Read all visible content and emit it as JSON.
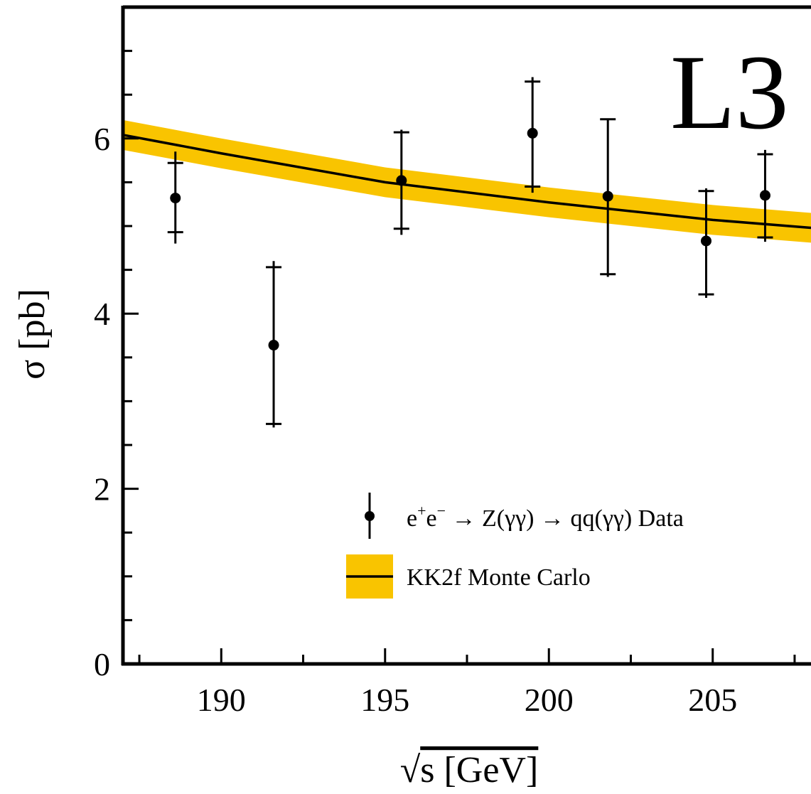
{
  "chart_data": {
    "type": "scatter",
    "tag": "L3",
    "xlabel_sqrt": "√",
    "xlabel_rest": "s [GeV]",
    "ylabel": "σ [pb]",
    "xlim": [
      187,
      208
    ],
    "ylim": [
      0,
      7.5
    ],
    "x_ticks": [
      190,
      195,
      200,
      205
    ],
    "y_ticks": [
      0,
      2,
      4,
      6
    ],
    "x_minor_step": 2.5,
    "y_minor_step": 0.5,
    "series": [
      {
        "name": "e⁺e⁻ → Z(γγ) → qq(γγ) Data",
        "legend_parts": {
          "e1": "e",
          "sup1": "+",
          "e2": "e",
          "sup2": "−",
          "rest": " → Z(γγ) → qq(γγ) Data"
        },
        "points": [
          {
            "x": 188.6,
            "y": 5.32,
            "err_lo": 4.8,
            "err_hi": 5.85,
            "cap_lo": 4.93,
            "cap_hi": 5.72
          },
          {
            "x": 191.6,
            "y": 3.64,
            "err_lo": 2.7,
            "err_hi": 4.6,
            "cap_lo": 2.74,
            "cap_hi": 4.53
          },
          {
            "x": 195.5,
            "y": 5.52,
            "err_lo": 4.9,
            "err_hi": 6.1,
            "cap_lo": 4.97,
            "cap_hi": 6.07
          },
          {
            "x": 199.5,
            "y": 6.06,
            "err_lo": 5.38,
            "err_hi": 6.7,
            "cap_lo": 5.45,
            "cap_hi": 6.65
          },
          {
            "x": 201.8,
            "y": 5.34,
            "err_lo": 4.42,
            "err_hi": 6.22,
            "cap_lo": 4.45,
            "cap_hi": 6.22
          },
          {
            "x": 204.8,
            "y": 4.83,
            "err_lo": 4.18,
            "err_hi": 5.43,
            "cap_lo": 4.22,
            "cap_hi": 5.4
          },
          {
            "x": 206.6,
            "y": 5.35,
            "err_lo": 4.82,
            "err_hi": 5.87,
            "cap_lo": 4.87,
            "cap_hi": 5.82
          }
        ]
      },
      {
        "name": "KK2f Monte Carlo",
        "curve": [
          {
            "x": 187.0,
            "y": 6.04
          },
          {
            "x": 190.0,
            "y": 5.83
          },
          {
            "x": 195.0,
            "y": 5.5
          },
          {
            "x": 200.0,
            "y": 5.27
          },
          {
            "x": 205.0,
            "y": 5.07
          },
          {
            "x": 208.0,
            "y": 4.98
          }
        ],
        "band_halfwidth": 0.17
      }
    ],
    "colors": {
      "band": "#f9c400",
      "line": "#000000",
      "marker": "#000000"
    }
  }
}
